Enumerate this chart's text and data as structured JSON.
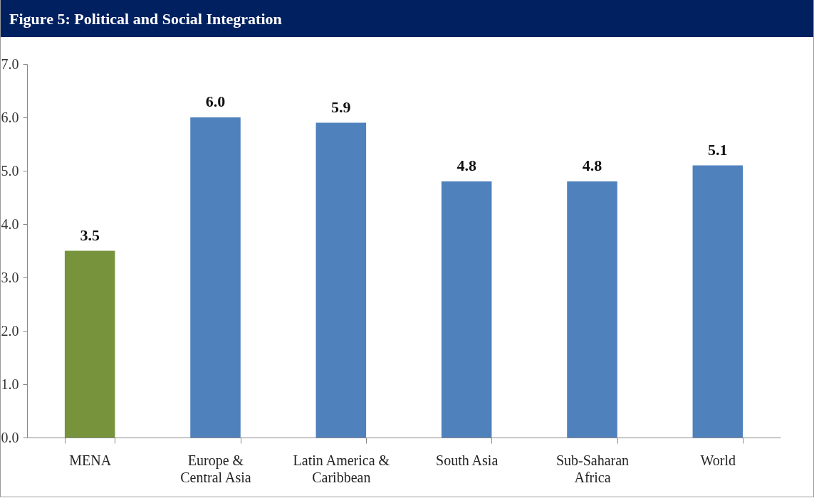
{
  "chart_data": {
    "type": "bar",
    "title": "Figure 5: Political and Social Integration",
    "categories": [
      "MENA",
      "Europe & Central Asia",
      "Latin America & Caribbean",
      "South Asia",
      "Sub-Saharan Africa",
      "World"
    ],
    "values": [
      3.5,
      6.0,
      5.9,
      4.8,
      4.8,
      5.1
    ],
    "value_labels": [
      "3.5",
      "6.0",
      "5.9",
      "4.8",
      "4.8",
      "5.1"
    ],
    "colors": [
      "#77933c",
      "#4f81bd",
      "#4f81bd",
      "#4f81bd",
      "#4f81bd",
      "#4f81bd"
    ],
    "ylim": [
      0,
      7
    ],
    "yticks": [
      {
        "value": 0,
        "label": "0.0"
      },
      {
        "value": 1,
        "label": "1.0"
      },
      {
        "value": 2,
        "label": "2.0"
      },
      {
        "value": 3,
        "label": "3.0"
      },
      {
        "value": 4,
        "label": "4.0"
      },
      {
        "value": 5,
        "label": "5.0"
      },
      {
        "value": 6,
        "label": "6.0"
      },
      {
        "value": 7,
        "label": "7.0"
      }
    ],
    "grid": false
  }
}
